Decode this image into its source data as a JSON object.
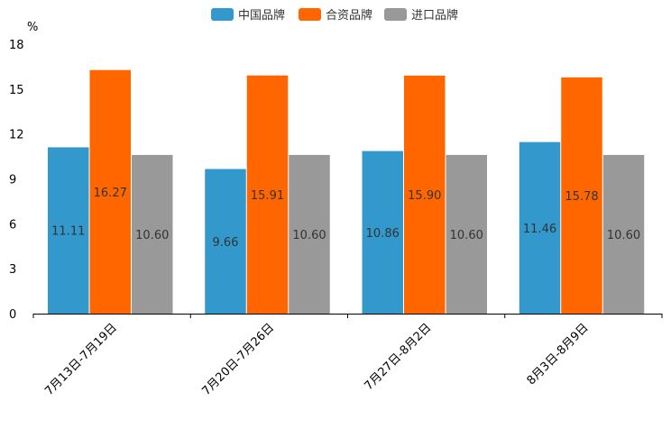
{
  "chart_data": {
    "type": "bar",
    "ylabel": "%",
    "ylim": [
      0,
      18
    ],
    "yticks": [
      0,
      3,
      6,
      9,
      12,
      15,
      18
    ],
    "grid": false,
    "legend_position": "top-center",
    "categories": [
      "7月13日-7月19日",
      "7月20日-7月26日",
      "7月27日-8月2日",
      "8月3日-8月9日"
    ],
    "series": [
      {
        "name": "中国品牌",
        "color": "#3399cc",
        "values": [
          11.11,
          9.66,
          10.86,
          11.46
        ],
        "labels": [
          "11.11",
          "9.66",
          "10.86",
          "11.46"
        ]
      },
      {
        "name": "合资品牌",
        "color": "#ff6600",
        "values": [
          16.27,
          15.91,
          15.9,
          15.78
        ],
        "labels": [
          "16.27",
          "15.91",
          "15.90",
          "15.78"
        ]
      },
      {
        "name": "进口品牌",
        "color": "#999999",
        "values": [
          10.6,
          10.6,
          10.6,
          10.6
        ],
        "labels": [
          "10.60",
          "10.60",
          "10.60",
          "10.60"
        ]
      }
    ]
  }
}
